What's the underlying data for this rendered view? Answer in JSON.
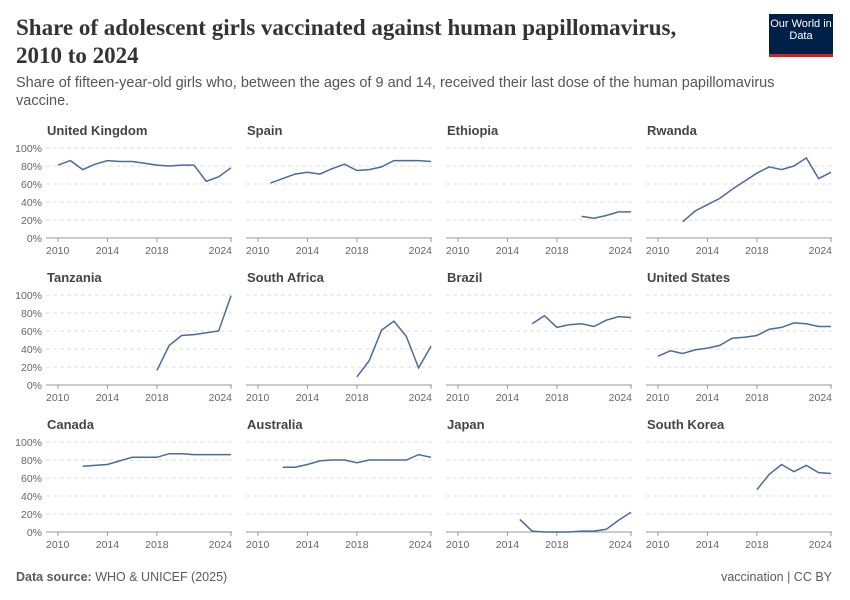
{
  "header": {
    "title": "Share of adolescent girls vaccinated against human papillomavirus, 2010 to 2024",
    "subtitle": "Share of fifteen-year-old girls who, between the ages of 9 and 14, received their last dose of the human papillomavirus vaccine.",
    "logo": "Our World in Data"
  },
  "footer": {
    "source_label": "Data source:",
    "source": "WHO & UNICEF (2025)",
    "license": "vaccination | CC BY"
  },
  "chart_data": [
    {
      "type": "line",
      "title": "United Kingdom",
      "color": "#4c6a9c",
      "x": [
        2010,
        2011,
        2012,
        2013,
        2014,
        2015,
        2016,
        2017,
        2018,
        2019,
        2020,
        2021,
        2022,
        2023,
        2024
      ],
      "values": [
        81,
        86,
        76,
        82,
        86,
        85,
        85,
        83,
        81,
        80,
        81,
        81,
        63,
        68,
        78
      ],
      "xlim": [
        2010,
        2024
      ],
      "ylim": [
        0,
        100
      ],
      "xticks": [
        2010,
        2014,
        2018,
        2024
      ],
      "yticks": [
        {
          "value": 0,
          "label": "0%"
        },
        {
          "value": 20,
          "label": "20%"
        },
        {
          "value": 40,
          "label": "40%"
        },
        {
          "value": 60,
          "label": "60%"
        },
        {
          "value": 80,
          "label": "80%"
        },
        {
          "value": 100,
          "label": "100%"
        }
      ],
      "grid": true
    },
    {
      "type": "line",
      "title": "Spain",
      "color": "#4c6a9c",
      "x": [
        2011,
        2012,
        2013,
        2014,
        2015,
        2016,
        2017,
        2018,
        2019,
        2020,
        2021,
        2022,
        2023,
        2024
      ],
      "values": [
        61,
        66,
        71,
        73,
        71,
        77,
        82,
        75,
        76,
        79,
        86,
        86,
        86,
        85
      ],
      "xlim": [
        2010,
        2024
      ],
      "ylim": [
        0,
        100
      ],
      "xticks": [
        2010,
        2014,
        2018,
        2024
      ],
      "yticks": [
        0,
        20,
        40,
        60,
        80,
        100
      ],
      "grid": true
    },
    {
      "type": "line",
      "title": "Ethiopia",
      "color": "#4c6a9c",
      "x": [
        2020,
        2021,
        2022,
        2023,
        2024
      ],
      "values": [
        24,
        22,
        25,
        29,
        29
      ],
      "xlim": [
        2010,
        2024
      ],
      "ylim": [
        0,
        100
      ],
      "xticks": [
        2010,
        2014,
        2018,
        2024
      ],
      "yticks": [
        0,
        20,
        40,
        60,
        80,
        100
      ],
      "grid": true
    },
    {
      "type": "line",
      "title": "Rwanda",
      "color": "#4c6a9c",
      "x": [
        2012,
        2013,
        2014,
        2015,
        2016,
        2017,
        2018,
        2019,
        2020,
        2021,
        2022,
        2023,
        2024
      ],
      "values": [
        18,
        30,
        37,
        44,
        54,
        63,
        72,
        79,
        76,
        80,
        89,
        66,
        73
      ],
      "xlim": [
        2010,
        2024
      ],
      "ylim": [
        0,
        100
      ],
      "xticks": [
        2010,
        2014,
        2018,
        2024
      ],
      "yticks": [
        0,
        20,
        40,
        60,
        80,
        100
      ],
      "grid": true
    },
    {
      "type": "line",
      "title": "Tanzania",
      "color": "#4c6a9c",
      "x": [
        2018,
        2019,
        2020,
        2021,
        2023,
        2024
      ],
      "values": [
        16,
        44,
        55,
        56,
        60,
        99
      ],
      "xlim": [
        2010,
        2024
      ],
      "ylim": [
        0,
        100
      ],
      "xticks": [
        2010,
        2014,
        2018,
        2024
      ],
      "yticks": [
        {
          "value": 0,
          "label": "0%"
        },
        {
          "value": 20,
          "label": "20%"
        },
        {
          "value": 40,
          "label": "40%"
        },
        {
          "value": 60,
          "label": "60%"
        },
        {
          "value": 80,
          "label": "80%"
        },
        {
          "value": 100,
          "label": "100%"
        }
      ],
      "grid": true
    },
    {
      "type": "line",
      "title": "South Africa",
      "color": "#4c6a9c",
      "x": [
        2018,
        2019,
        2020,
        2021,
        2022,
        2023,
        2024
      ],
      "values": [
        9,
        27,
        61,
        71,
        54,
        19,
        43
      ],
      "xlim": [
        2010,
        2024
      ],
      "ylim": [
        0,
        100
      ],
      "xticks": [
        2010,
        2014,
        2018,
        2024
      ],
      "yticks": [
        0,
        20,
        40,
        60,
        80,
        100
      ],
      "grid": true
    },
    {
      "type": "line",
      "title": "Brazil",
      "color": "#4c6a9c",
      "x": [
        2016,
        2017,
        2018,
        2019,
        2020,
        2021,
        2022,
        2023,
        2024
      ],
      "values": [
        68,
        77,
        64,
        67,
        68,
        65,
        72,
        76,
        75
      ],
      "xlim": [
        2010,
        2024
      ],
      "ylim": [
        0,
        100
      ],
      "xticks": [
        2010,
        2014,
        2018,
        2024
      ],
      "yticks": [
        0,
        20,
        40,
        60,
        80,
        100
      ],
      "grid": true
    },
    {
      "type": "line",
      "title": "United States",
      "color": "#4c6a9c",
      "x": [
        2010,
        2011,
        2012,
        2013,
        2014,
        2015,
        2016,
        2017,
        2018,
        2019,
        2020,
        2021,
        2022,
        2023,
        2024
      ],
      "values": [
        32,
        38,
        35,
        39,
        41,
        44,
        52,
        53,
        55,
        62,
        64,
        69,
        68,
        65,
        65
      ],
      "xlim": [
        2010,
        2024
      ],
      "ylim": [
        0,
        100
      ],
      "xticks": [
        2010,
        2014,
        2018,
        2024
      ],
      "yticks": [
        0,
        20,
        40,
        60,
        80,
        100
      ],
      "grid": true
    },
    {
      "type": "line",
      "title": "Canada",
      "color": "#4c6a9c",
      "x": [
        2012,
        2013,
        2014,
        2015,
        2016,
        2017,
        2018,
        2019,
        2020,
        2021,
        2022,
        2023,
        2024
      ],
      "values": [
        73,
        74,
        75,
        79,
        83,
        83,
        83,
        87,
        87,
        86,
        86,
        86,
        86
      ],
      "xlim": [
        2010,
        2024
      ],
      "ylim": [
        0,
        100
      ],
      "xticks": [
        2010,
        2014,
        2018,
        2024
      ],
      "yticks": [
        {
          "value": 0,
          "label": "0%"
        },
        {
          "value": 20,
          "label": "20%"
        },
        {
          "value": 40,
          "label": "40%"
        },
        {
          "value": 60,
          "label": "60%"
        },
        {
          "value": 80,
          "label": "80%"
        },
        {
          "value": 100,
          "label": "100%"
        }
      ],
      "grid": true
    },
    {
      "type": "line",
      "title": "Australia",
      "color": "#4c6a9c",
      "x": [
        2012,
        2013,
        2014,
        2015,
        2016,
        2017,
        2018,
        2019,
        2020,
        2021,
        2022,
        2023,
        2024
      ],
      "values": [
        72,
        72,
        75,
        79,
        80,
        80,
        77,
        80,
        80,
        80,
        80,
        86,
        83
      ],
      "xlim": [
        2010,
        2024
      ],
      "ylim": [
        0,
        100
      ],
      "xticks": [
        2010,
        2014,
        2018,
        2024
      ],
      "yticks": [
        0,
        20,
        40,
        60,
        80,
        100
      ],
      "grid": true
    },
    {
      "type": "line",
      "title": "Japan",
      "color": "#4c6a9c",
      "x": [
        2015,
        2016,
        2017,
        2018,
        2019,
        2020,
        2021,
        2022,
        2023,
        2024
      ],
      "values": [
        14,
        1,
        0,
        0,
        0,
        1,
        1,
        3,
        13,
        22
      ],
      "xlim": [
        2010,
        2024
      ],
      "ylim": [
        0,
        100
      ],
      "xticks": [
        2010,
        2014,
        2018,
        2024
      ],
      "yticks": [
        0,
        20,
        40,
        60,
        80,
        100
      ],
      "grid": true
    },
    {
      "type": "line",
      "title": "South Korea",
      "color": "#4c6a9c",
      "x": [
        2018,
        2019,
        2020,
        2021,
        2022,
        2023,
        2024
      ],
      "values": [
        47,
        64,
        75,
        67,
        74,
        66,
        65
      ],
      "xlim": [
        2010,
        2024
      ],
      "ylim": [
        0,
        100
      ],
      "xticks": [
        2010,
        2014,
        2018,
        2024
      ],
      "yticks": [
        0,
        20,
        40,
        60,
        80,
        100
      ],
      "grid": true
    }
  ]
}
